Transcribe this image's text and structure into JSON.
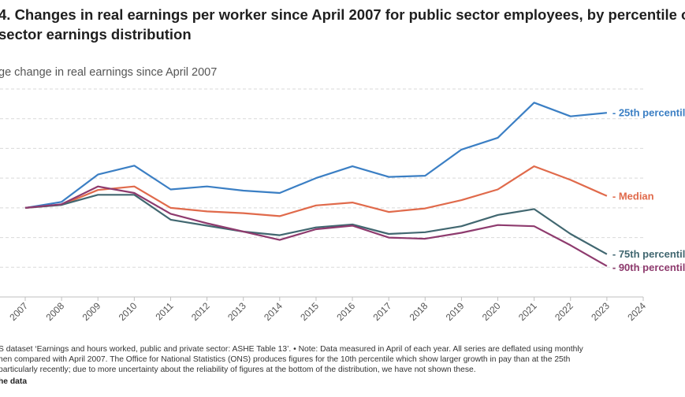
{
  "chart_data": {
    "type": "line",
    "title": "4. Changes in real earnings per worker since April 2007 for public sector employees, by percentile of t\nsector earnings distribution",
    "subtitle": "ge change in real earnings since April 2007",
    "x": [
      2007,
      2008,
      2009,
      2010,
      2011,
      2012,
      2013,
      2014,
      2015,
      2016,
      2017,
      2018,
      2019,
      2020,
      2021,
      2022,
      2023
    ],
    "xticks": [
      2007,
      2008,
      2009,
      2010,
      2011,
      2012,
      2013,
      2014,
      2015,
      2016,
      2017,
      2018,
      2019,
      2020,
      2021,
      2022,
      2023,
      2024
    ],
    "xlim": [
      2007,
      2024
    ],
    "ylim": [
      -15,
      20
    ],
    "ygrid": [
      -15,
      -10,
      -5,
      0,
      5,
      10,
      15,
      20
    ],
    "grid": true,
    "legend": "end-of-line labels",
    "series": [
      {
        "name": "25th percentile",
        "color": "#3b7fc4",
        "values": [
          0,
          1.0,
          5.6,
          7.1,
          3.1,
          3.6,
          2.9,
          2.5,
          5.0,
          7.0,
          5.2,
          5.4,
          9.8,
          11.8,
          17.7,
          15.4,
          16.0
        ]
      },
      {
        "name": "Median",
        "color": "#e06a4b",
        "values": [
          0,
          0.5,
          3.0,
          3.6,
          0.0,
          -0.6,
          -0.9,
          -1.4,
          0.4,
          0.9,
          -0.7,
          -0.1,
          1.3,
          3.1,
          7.0,
          4.7,
          2.0
        ]
      },
      {
        "name": "75th percentile",
        "color": "#416770",
        "values": [
          0,
          0.5,
          2.2,
          2.2,
          -2.0,
          -3.0,
          -4.0,
          -4.6,
          -3.3,
          -2.8,
          -4.4,
          -4.1,
          -3.1,
          -1.2,
          -0.2,
          -4.4,
          -7.8
        ]
      },
      {
        "name": "90th percentile",
        "color": "#8e3b6e",
        "values": [
          0,
          0.6,
          3.6,
          2.5,
          -1.0,
          -2.6,
          -4.0,
          -5.4,
          -3.6,
          -3.0,
          -5.0,
          -5.2,
          -4.2,
          -2.9,
          -3.1,
          -6.3,
          -9.8
        ]
      }
    ]
  },
  "footer": {
    "source": "S dataset ‘Earnings and hours worked, public and private sector: ASHE Table 13’. • Note: Data measured in April of each year. All series are deflated using monthly\nhen compared with April 2007. The Office for National Statistics (ONS) produces figures for the 10th percentile which show larger growth in pay than at the 25th\nparticularly recently; due to more uncertainty about the reliability of figures at the bottom of the distribution, we have not shown these.",
    "credit": "he data"
  }
}
